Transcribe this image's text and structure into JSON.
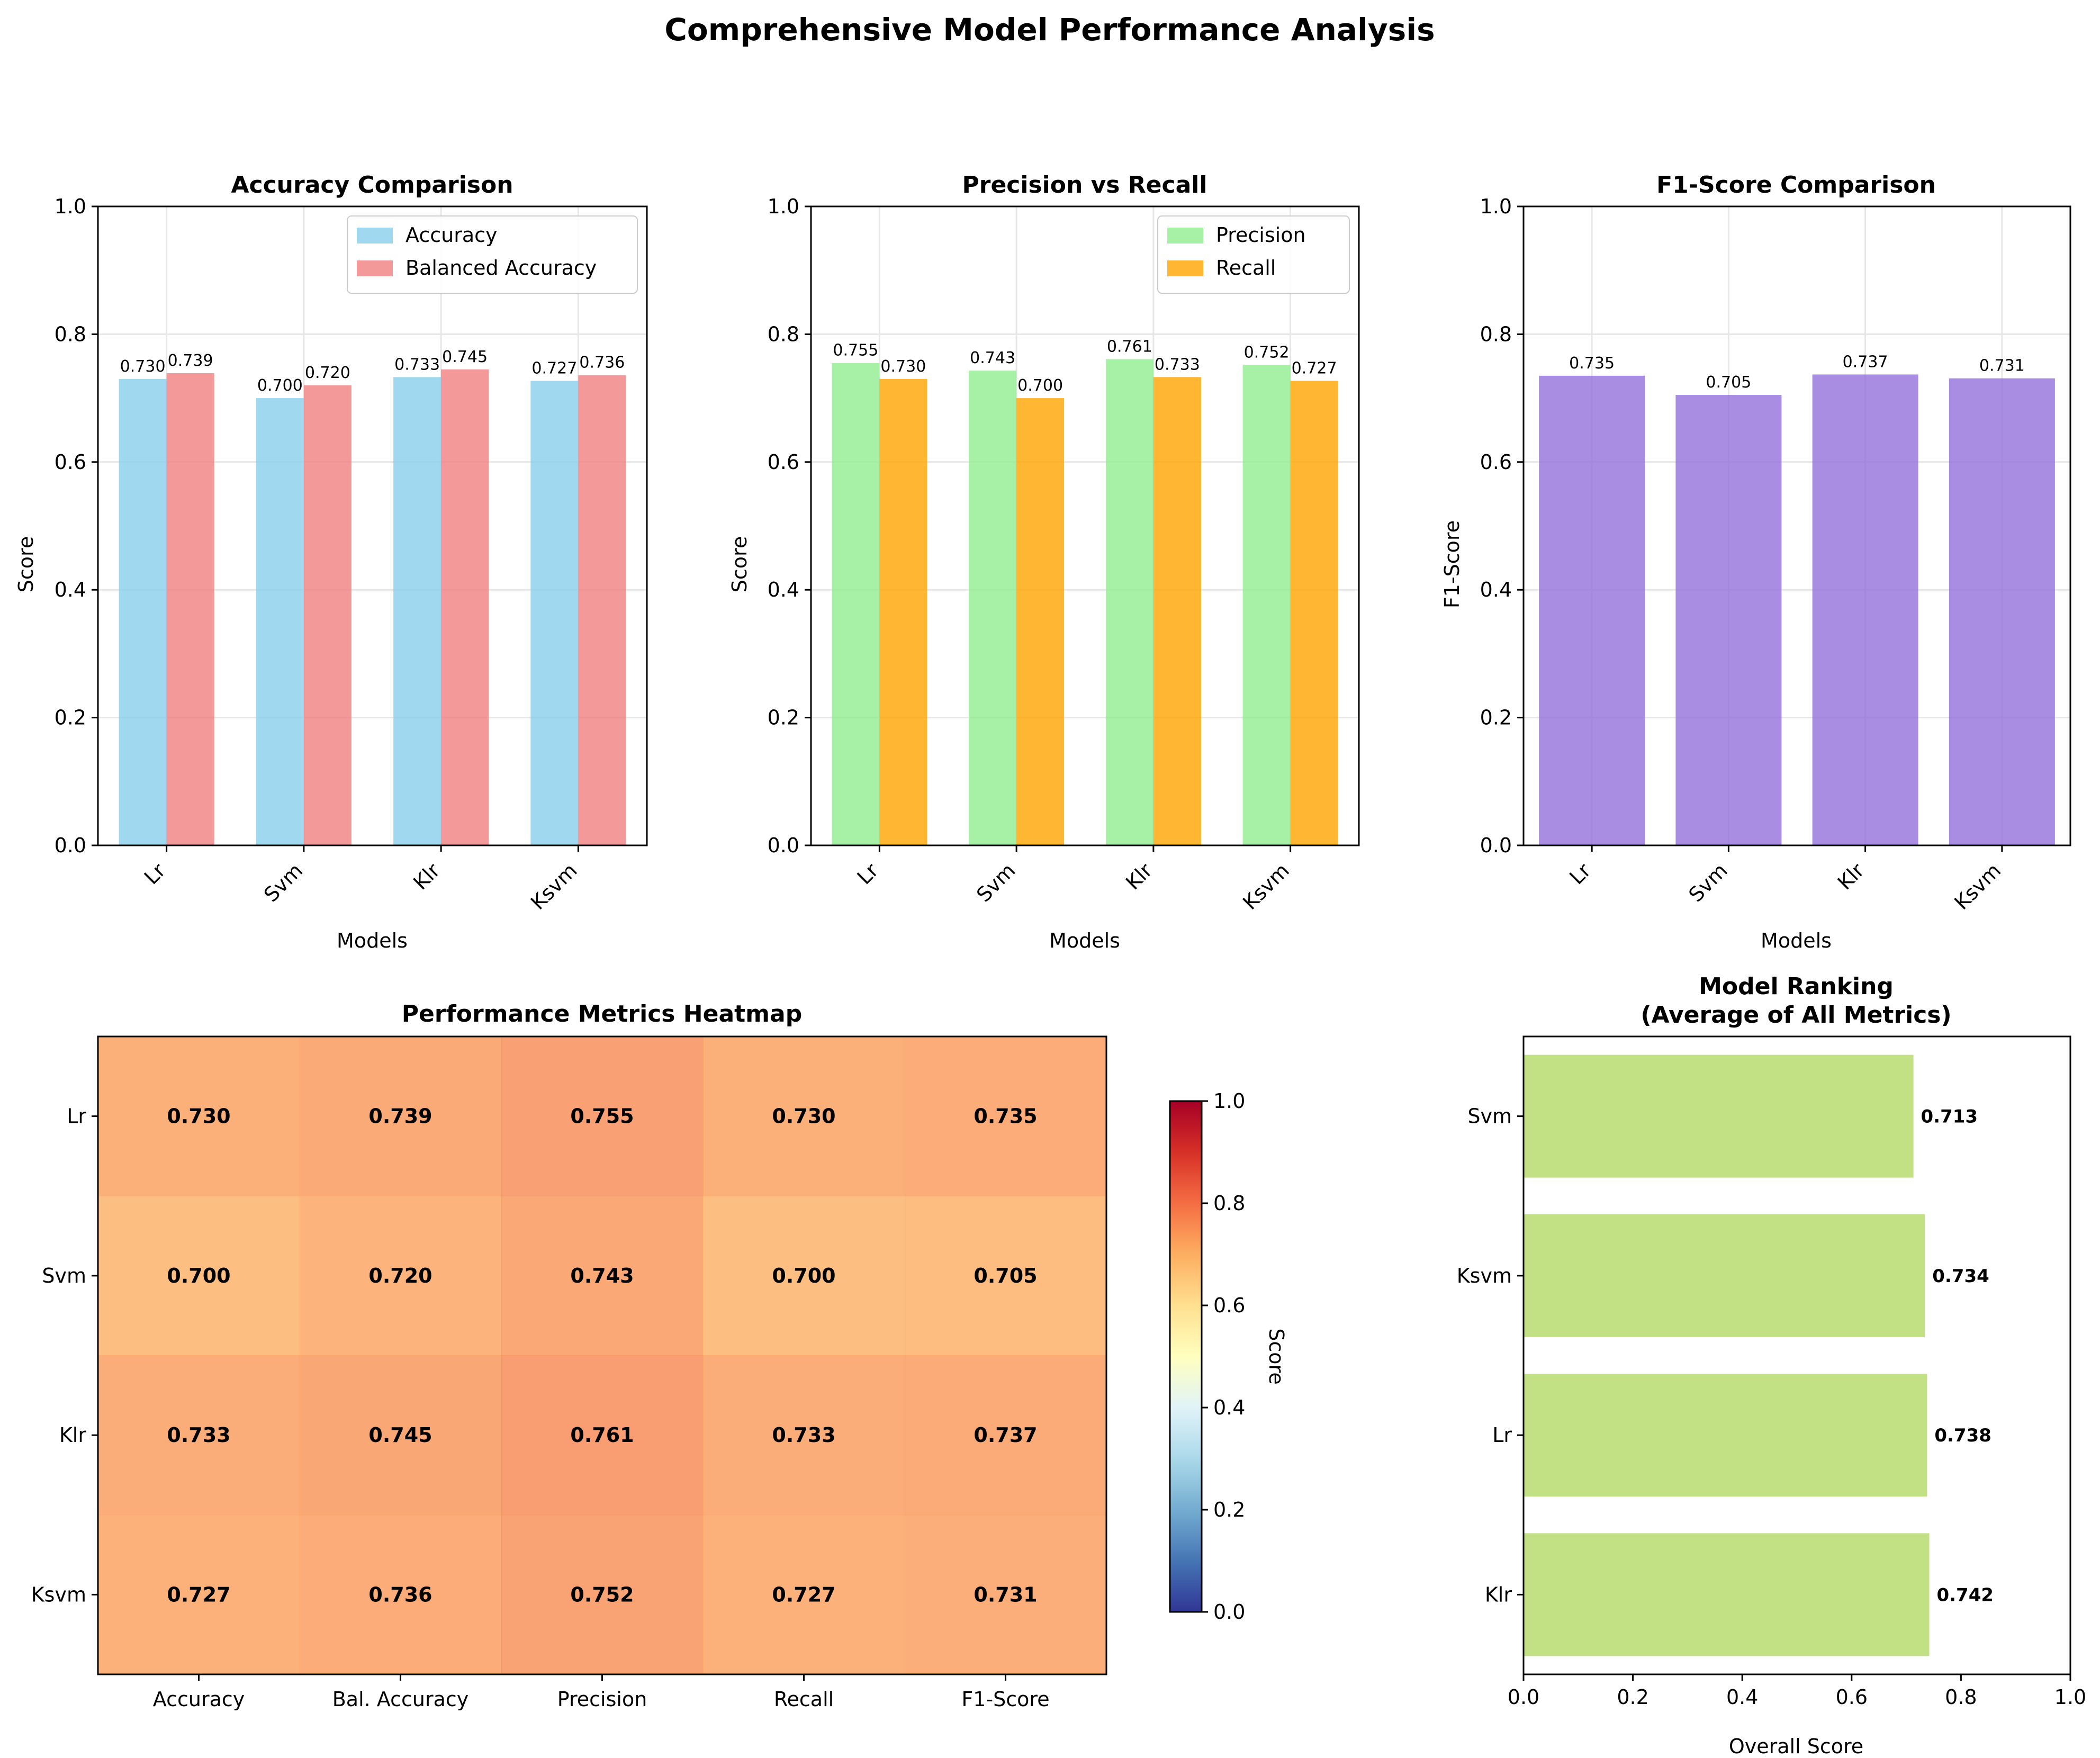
{
  "figure": {
    "title": "Comprehensive Model Performance Analysis"
  },
  "chart_data": [
    {
      "type": "bar",
      "title": "Accuracy Comparison",
      "xlabel": "Models",
      "ylabel": "Score",
      "ylim": [
        0,
        1
      ],
      "yticks": [
        "0.0",
        "0.2",
        "0.4",
        "0.6",
        "0.8",
        "1.0"
      ],
      "categories": [
        "Lr",
        "Svm",
        "Klr",
        "Ksvm"
      ],
      "series": [
        {
          "name": "Accuracy",
          "color": "#87ceeb",
          "values": [
            0.73,
            0.7,
            0.733,
            0.727
          ],
          "labels": [
            "0.730",
            "0.700",
            "0.733",
            "0.727"
          ]
        },
        {
          "name": "Balanced Accuracy",
          "color": "#f08080",
          "values": [
            0.739,
            0.72,
            0.745,
            0.736
          ],
          "labels": [
            "0.739",
            "0.720",
            "0.745",
            "0.736"
          ]
        }
      ],
      "legend": "top-right",
      "grid": true
    },
    {
      "type": "bar",
      "title": "Precision vs Recall",
      "xlabel": "Models",
      "ylabel": "Score",
      "ylim": [
        0,
        1
      ],
      "yticks": [
        "0.0",
        "0.2",
        "0.4",
        "0.6",
        "0.8",
        "1.0"
      ],
      "categories": [
        "Lr",
        "Svm",
        "Klr",
        "Ksvm"
      ],
      "series": [
        {
          "name": "Precision",
          "color": "#90ee90",
          "values": [
            0.755,
            0.743,
            0.761,
            0.752
          ],
          "labels": [
            "0.755",
            "0.743",
            "0.761",
            "0.752"
          ]
        },
        {
          "name": "Recall",
          "color": "#ffa500",
          "values": [
            0.73,
            0.7,
            0.733,
            0.727
          ],
          "labels": [
            "0.730",
            "0.700",
            "0.733",
            "0.727"
          ]
        }
      ],
      "legend": "top-right",
      "grid": true
    },
    {
      "type": "bar",
      "title": "F1-Score Comparison",
      "xlabel": "Models",
      "ylabel": "F1-Score",
      "ylim": [
        0,
        1
      ],
      "yticks": [
        "0.0",
        "0.2",
        "0.4",
        "0.6",
        "0.8",
        "1.0"
      ],
      "categories": [
        "Lr",
        "Svm",
        "Klr",
        "Ksvm"
      ],
      "series": [
        {
          "color": "#9370db",
          "values": [
            0.735,
            0.705,
            0.737,
            0.731
          ],
          "labels": [
            "0.735",
            "0.705",
            "0.737",
            "0.731"
          ]
        }
      ],
      "grid": true
    },
    {
      "type": "heatmap",
      "title": "Performance Metrics Heatmap",
      "rows": [
        "Lr",
        "Svm",
        "Klr",
        "Ksvm"
      ],
      "columns": [
        "Accuracy",
        "Bal. Accuracy",
        "Precision",
        "Recall",
        "F1-Score"
      ],
      "values": [
        [
          0.73,
          0.739,
          0.755,
          0.73,
          0.735
        ],
        [
          0.7,
          0.72,
          0.743,
          0.7,
          0.705
        ],
        [
          0.733,
          0.745,
          0.761,
          0.733,
          0.737
        ],
        [
          0.727,
          0.736,
          0.752,
          0.727,
          0.731
        ]
      ],
      "labels": [
        [
          "0.730",
          "0.739",
          "0.755",
          "0.730",
          "0.735"
        ],
        [
          "0.700",
          "0.720",
          "0.743",
          "0.700",
          "0.705"
        ],
        [
          "0.733",
          "0.745",
          "0.761",
          "0.733",
          "0.737"
        ],
        [
          "0.727",
          "0.736",
          "0.752",
          "0.727",
          "0.731"
        ]
      ],
      "colormap": "RdYlBu_r",
      "colorbar": {
        "label": "Score",
        "range": [
          0,
          1
        ],
        "ticks": [
          "0.0",
          "0.2",
          "0.4",
          "0.6",
          "0.8",
          "1.0"
        ]
      }
    },
    {
      "type": "bar",
      "orientation": "horizontal",
      "title": "Model Ranking\n(Average of All Metrics)",
      "title_lines": [
        "Model Ranking",
        "(Average of All Metrics)"
      ],
      "xlabel": "Overall Score",
      "xlim": [
        0,
        1
      ],
      "xticks": [
        "0.0",
        "0.2",
        "0.4",
        "0.6",
        "0.8",
        "1.0"
      ],
      "categories": [
        "Svm",
        "Ksvm",
        "Lr",
        "Klr"
      ],
      "values": [
        0.713,
        0.734,
        0.738,
        0.742
      ],
      "labels": [
        "0.713",
        "0.734",
        "0.738",
        "0.742"
      ],
      "color": "#9acd32"
    }
  ]
}
